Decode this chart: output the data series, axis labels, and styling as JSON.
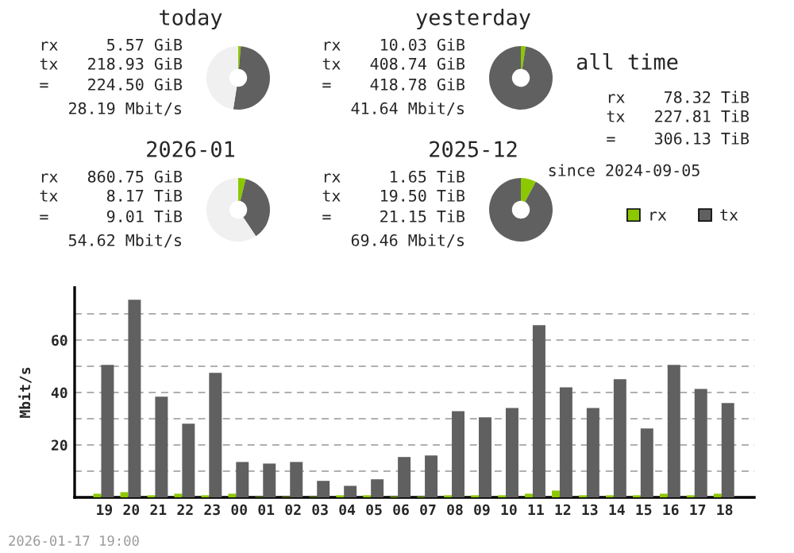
{
  "chart_data": [
    {
      "type": "donut",
      "title": "today",
      "categories": [
        null,
        null,
        null
      ],
      "values": [
        1.3,
        51.2,
        47.5
      ],
      "colors": [
        "#8cc800",
        "#606060",
        "#f0f0f0"
      ],
      "annotations": [
        "rx     5.57 GiB",
        "tx   218.93 GiB",
        "=    224.50 GiB",
        "28.19 Mbit/s"
      ]
    },
    {
      "type": "donut",
      "title": "yesterday",
      "categories": [
        null,
        null
      ],
      "values": [
        2.4,
        97.6
      ],
      "colors": [
        "#8cc800",
        "#606060"
      ],
      "annotations": [
        "rx    10.03 GiB",
        "tx   408.74 GiB",
        "=    418.78 GiB",
        "41.64 Mbit/s"
      ]
    },
    {
      "type": "donut",
      "title": "2026-01",
      "categories": [
        null,
        null,
        null
      ],
      "values": [
        3.8,
        36.8,
        59.4
      ],
      "colors": [
        "#8cc800",
        "#606060",
        "#f0f0f0"
      ],
      "annotations": [
        "rx   860.75 GiB",
        "tx     8.17 TiB",
        "=      9.01 TiB",
        "54.62 Mbit/s"
      ]
    },
    {
      "type": "donut",
      "title": "2025-12",
      "categories": [
        null,
        null
      ],
      "values": [
        7.8,
        92.2
      ],
      "colors": [
        "#8cc800",
        "#606060"
      ],
      "annotations": [
        "rx     1.65 TiB",
        "tx    19.50 TiB",
        "=     21.15 TiB",
        "69.46 Mbit/s"
      ]
    },
    {
      "type": "other",
      "title": "all time",
      "annotations": [
        "rx    78.32 TiB",
        "tx   227.81 TiB",
        "=    306.13 TiB",
        "since 2024-09-05"
      ]
    },
    {
      "type": "bar",
      "ylabel": "Mbit/s",
      "legend": "top right",
      "grid": "y",
      "categories": [
        "19",
        "20",
        "21",
        "22",
        "23",
        "00",
        "01",
        "02",
        "03",
        "04",
        "05",
        "06",
        "07",
        "08",
        "09",
        "10",
        "11",
        "12",
        "13",
        "14",
        "15",
        "16",
        "17",
        "18"
      ],
      "ylim": [
        0,
        80
      ],
      "yticks": [
        {
          "value": 10,
          "label": null
        },
        20,
        {
          "value": 30,
          "label": null
        },
        40,
        {
          "value": 50,
          "label": null
        },
        60,
        {
          "value": 70,
          "label": null
        }
      ],
      "series": [
        {
          "name": "rx",
          "color": "#8cc800",
          "values": [
            1.4,
            2.0,
            0.8,
            1.4,
            0.8,
            1.4,
            0.2,
            0.2,
            0.2,
            0.8,
            0.8,
            0.3,
            0.3,
            0.8,
            0.8,
            0.8,
            1.4,
            2.6,
            0.8,
            0.8,
            0.8,
            1.4,
            0.8,
            1.4
          ]
        },
        {
          "name": "tx",
          "color": "#606060",
          "values": [
            50.5,
            75.4,
            38.4,
            28.1,
            47.5,
            13.5,
            12.9,
            13.5,
            6.3,
            4.4,
            6.9,
            15.4,
            16.0,
            32.9,
            30.5,
            34.1,
            65.7,
            42.0,
            34.1,
            45.1,
            26.3,
            50.5,
            41.4,
            36.0
          ]
        }
      ],
      "annotations": [
        "2026-01-17 19:00"
      ]
    }
  ]
}
